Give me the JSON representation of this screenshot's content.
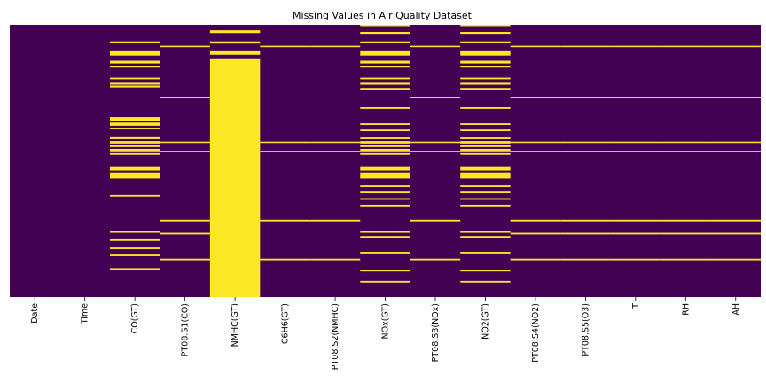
{
  "chart_data": {
    "type": "heatmap",
    "title": "Missing Values in Air Quality Dataset",
    "xlabel": "",
    "ylabel": "",
    "colors": {
      "present": "#440154",
      "missing": "#fde725"
    },
    "colorbar": false,
    "columns": [
      "Date",
      "Time",
      "CO(GT)",
      "PT08.S1(CO)",
      "NMHC(GT)",
      "C6H6(GT)",
      "PT08.S2(NMHC)",
      "NOx(GT)",
      "PT08.S3(NOx)",
      "NO2(GT)",
      "PT08.S4(NO2)",
      "PT08.S5(O3)",
      "T",
      "RH",
      "AH"
    ],
    "row_range": [
      0,
      1
    ],
    "missing_runs": {
      "Date": [],
      "Time": [],
      "CO(GT)": [
        [
          0.061,
          0.068
        ],
        [
          0.094,
          0.113
        ],
        [
          0.132,
          0.142
        ],
        [
          0.152,
          0.157
        ],
        [
          0.194,
          0.2
        ],
        [
          0.213,
          0.22
        ],
        [
          0.223,
          0.23
        ],
        [
          0.339,
          0.352
        ],
        [
          0.359,
          0.371
        ],
        [
          0.378,
          0.384
        ],
        [
          0.41,
          0.42
        ],
        [
          0.427,
          0.436
        ],
        [
          0.443,
          0.449
        ],
        [
          0.456,
          0.465
        ],
        [
          0.472,
          0.478
        ],
        [
          0.52,
          0.536
        ],
        [
          0.543,
          0.565
        ],
        [
          0.625,
          0.631
        ],
        [
          0.756,
          0.764
        ],
        [
          0.788,
          0.794
        ],
        [
          0.818,
          0.824
        ],
        [
          0.844,
          0.85
        ],
        [
          0.894,
          0.9
        ]
      ],
      "PT08.S1(CO)": [
        [
          0.077,
          0.082
        ],
        [
          0.264,
          0.27
        ],
        [
          0.429,
          0.434
        ],
        [
          0.463,
          0.468
        ],
        [
          0.716,
          0.722
        ],
        [
          0.764,
          0.77
        ],
        [
          0.859,
          0.865
        ]
      ],
      "NMHC(GT)": [
        [
          0.02,
          0.03
        ],
        [
          0.061,
          0.069
        ],
        [
          0.094,
          0.11
        ],
        [
          0.123,
          1.0
        ]
      ],
      "C6H6(GT)": [
        [
          0.077,
          0.082
        ],
        [
          0.429,
          0.434
        ],
        [
          0.463,
          0.468
        ],
        [
          0.716,
          0.722
        ],
        [
          0.859,
          0.865
        ]
      ],
      "PT08.S2(NMHC)": [
        [
          0.077,
          0.082
        ],
        [
          0.429,
          0.434
        ],
        [
          0.463,
          0.468
        ],
        [
          0.716,
          0.722
        ],
        [
          0.859,
          0.865
        ]
      ],
      "NOx(GT)": [
        [
          0.0,
          0.004
        ],
        [
          0.026,
          0.033
        ],
        [
          0.061,
          0.068
        ],
        [
          0.094,
          0.113
        ],
        [
          0.132,
          0.142
        ],
        [
          0.152,
          0.157
        ],
        [
          0.194,
          0.2
        ],
        [
          0.213,
          0.22
        ],
        [
          0.232,
          0.238
        ],
        [
          0.303,
          0.309
        ],
        [
          0.362,
          0.368
        ],
        [
          0.385,
          0.391
        ],
        [
          0.414,
          0.42
        ],
        [
          0.427,
          0.436
        ],
        [
          0.443,
          0.449
        ],
        [
          0.456,
          0.465
        ],
        [
          0.472,
          0.478
        ],
        [
          0.52,
          0.536
        ],
        [
          0.543,
          0.565
        ],
        [
          0.59,
          0.596
        ],
        [
          0.613,
          0.619
        ],
        [
          0.637,
          0.643
        ],
        [
          0.661,
          0.667
        ],
        [
          0.756,
          0.764
        ],
        [
          0.776,
          0.782
        ],
        [
          0.834,
          0.84
        ],
        [
          0.9,
          0.906
        ],
        [
          0.941,
          0.947
        ]
      ],
      "PT08.S3(NOx)": [
        [
          0.077,
          0.082
        ],
        [
          0.264,
          0.27
        ],
        [
          0.429,
          0.434
        ],
        [
          0.463,
          0.468
        ],
        [
          0.716,
          0.722
        ],
        [
          0.859,
          0.865
        ]
      ],
      "NO2(GT)": [
        [
          0.0,
          0.004
        ],
        [
          0.026,
          0.033
        ],
        [
          0.061,
          0.068
        ],
        [
          0.094,
          0.113
        ],
        [
          0.132,
          0.142
        ],
        [
          0.152,
          0.157
        ],
        [
          0.194,
          0.2
        ],
        [
          0.213,
          0.22
        ],
        [
          0.232,
          0.238
        ],
        [
          0.303,
          0.309
        ],
        [
          0.362,
          0.368
        ],
        [
          0.385,
          0.391
        ],
        [
          0.414,
          0.42
        ],
        [
          0.427,
          0.436
        ],
        [
          0.443,
          0.449
        ],
        [
          0.456,
          0.465
        ],
        [
          0.472,
          0.478
        ],
        [
          0.52,
          0.536
        ],
        [
          0.543,
          0.565
        ],
        [
          0.59,
          0.596
        ],
        [
          0.613,
          0.619
        ],
        [
          0.637,
          0.643
        ],
        [
          0.661,
          0.667
        ],
        [
          0.756,
          0.764
        ],
        [
          0.776,
          0.782
        ],
        [
          0.834,
          0.84
        ],
        [
          0.9,
          0.906
        ],
        [
          0.941,
          0.947
        ]
      ],
      "PT08.S4(NO2)": [
        [
          0.077,
          0.082
        ],
        [
          0.264,
          0.27
        ],
        [
          0.429,
          0.434
        ],
        [
          0.463,
          0.468
        ],
        [
          0.716,
          0.722
        ],
        [
          0.764,
          0.77
        ],
        [
          0.859,
          0.865
        ]
      ],
      "PT08.S5(O3)": [
        [
          0.077,
          0.082
        ],
        [
          0.264,
          0.27
        ],
        [
          0.429,
          0.434
        ],
        [
          0.463,
          0.468
        ],
        [
          0.716,
          0.722
        ],
        [
          0.764,
          0.77
        ],
        [
          0.859,
          0.865
        ]
      ],
      "T": [
        [
          0.077,
          0.082
        ],
        [
          0.264,
          0.27
        ],
        [
          0.429,
          0.434
        ],
        [
          0.463,
          0.468
        ],
        [
          0.716,
          0.722
        ],
        [
          0.764,
          0.77
        ],
        [
          0.859,
          0.865
        ]
      ],
      "RH": [
        [
          0.077,
          0.082
        ],
        [
          0.264,
          0.27
        ],
        [
          0.429,
          0.434
        ],
        [
          0.463,
          0.468
        ],
        [
          0.716,
          0.722
        ],
        [
          0.764,
          0.77
        ],
        [
          0.859,
          0.865
        ]
      ],
      "AH": [
        [
          0.077,
          0.082
        ],
        [
          0.264,
          0.27
        ],
        [
          0.429,
          0.434
        ],
        [
          0.463,
          0.468
        ],
        [
          0.716,
          0.722
        ],
        [
          0.764,
          0.77
        ],
        [
          0.859,
          0.865
        ]
      ]
    }
  }
}
